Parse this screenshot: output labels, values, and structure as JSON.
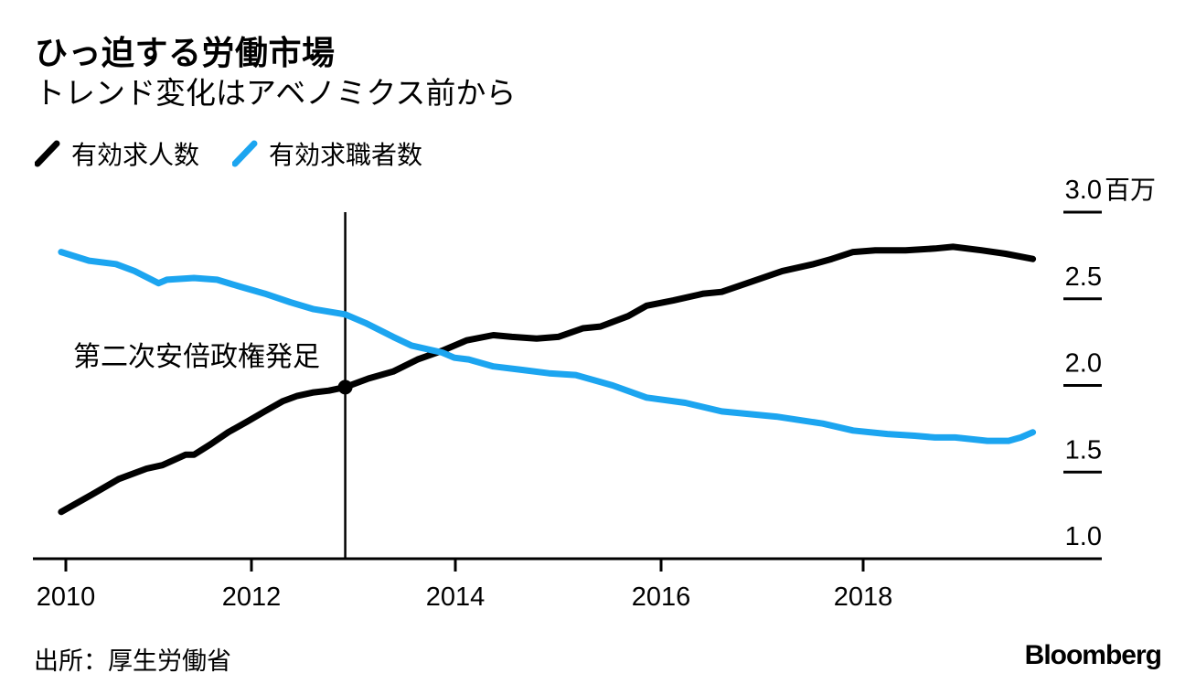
{
  "header": {
    "title": "ひっ迫する労働市場",
    "subtitle": "トレンド変化はアベノミクス前から"
  },
  "legend": [
    {
      "label": "有効求人数",
      "color": "#000000"
    },
    {
      "label": "有効求職者数",
      "color": "#1ca5f0"
    }
  ],
  "annotation": {
    "label": "第二次安倍政権発足"
  },
  "footer": {
    "source": "出所：厚生労働省",
    "brand": "Bloomberg"
  },
  "chart_data": {
    "type": "line",
    "title": "ひっ迫する労働市場",
    "subtitle": "トレンド変化はアベノミクス前から",
    "unit_label": "百万",
    "x_ticks": [
      2010,
      2012,
      2014,
      2016,
      2018
    ],
    "y_ticks": [
      1.0,
      1.5,
      2.0,
      2.5,
      3.0
    ],
    "xlim": [
      2009.95,
      2019.75
    ],
    "ylim": [
      1.0,
      3.0
    ],
    "grid": false,
    "legend_position": "top-left",
    "event_line": {
      "label": "第二次安倍政権発足",
      "x": 2012.92,
      "marker_series": "有効求人数",
      "marker_value": 1.99
    },
    "series": [
      {
        "name": "有効求人数",
        "color": "#000000",
        "points": [
          [
            2009.95,
            1.27
          ],
          [
            2010.28,
            1.37
          ],
          [
            2010.57,
            1.46
          ],
          [
            2010.87,
            1.52
          ],
          [
            2011.04,
            1.54
          ],
          [
            2011.29,
            1.6
          ],
          [
            2011.38,
            1.6
          ],
          [
            2011.56,
            1.66
          ],
          [
            2011.75,
            1.73
          ],
          [
            2011.95,
            1.79
          ],
          [
            2012.13,
            1.85
          ],
          [
            2012.31,
            1.91
          ],
          [
            2012.45,
            1.94
          ],
          [
            2012.61,
            1.96
          ],
          [
            2012.76,
            1.97
          ],
          [
            2012.92,
            1.99
          ],
          [
            2013.15,
            2.04
          ],
          [
            2013.39,
            2.08
          ],
          [
            2013.63,
            2.15
          ],
          [
            2013.87,
            2.2
          ],
          [
            2014.11,
            2.26
          ],
          [
            2014.37,
            2.29
          ],
          [
            2014.55,
            2.28
          ],
          [
            2014.79,
            2.27
          ],
          [
            2015.0,
            2.28
          ],
          [
            2015.24,
            2.33
          ],
          [
            2015.41,
            2.34
          ],
          [
            2015.68,
            2.4
          ],
          [
            2015.86,
            2.46
          ],
          [
            2016.12,
            2.49
          ],
          [
            2016.42,
            2.53
          ],
          [
            2016.6,
            2.54
          ],
          [
            2016.9,
            2.6
          ],
          [
            2017.2,
            2.66
          ],
          [
            2017.51,
            2.7
          ],
          [
            2017.69,
            2.73
          ],
          [
            2017.9,
            2.77
          ],
          [
            2018.12,
            2.78
          ],
          [
            2018.42,
            2.78
          ],
          [
            2018.71,
            2.79
          ],
          [
            2018.89,
            2.8
          ],
          [
            2019.17,
            2.78
          ],
          [
            2019.41,
            2.76
          ],
          [
            2019.68,
            2.73
          ]
        ]
      },
      {
        "name": "有効求職者数",
        "color": "#1ca5f0",
        "points": [
          [
            2009.95,
            2.77
          ],
          [
            2010.25,
            2.72
          ],
          [
            2010.54,
            2.7
          ],
          [
            2010.74,
            2.66
          ],
          [
            2011.0,
            2.59
          ],
          [
            2011.09,
            2.61
          ],
          [
            2011.38,
            2.62
          ],
          [
            2011.63,
            2.61
          ],
          [
            2011.88,
            2.57
          ],
          [
            2012.13,
            2.53
          ],
          [
            2012.38,
            2.48
          ],
          [
            2012.61,
            2.44
          ],
          [
            2012.92,
            2.41
          ],
          [
            2013.12,
            2.36
          ],
          [
            2013.39,
            2.28
          ],
          [
            2013.57,
            2.23
          ],
          [
            2013.87,
            2.19
          ],
          [
            2013.99,
            2.16
          ],
          [
            2014.13,
            2.15
          ],
          [
            2014.37,
            2.11
          ],
          [
            2014.64,
            2.09
          ],
          [
            2014.91,
            2.07
          ],
          [
            2015.17,
            2.06
          ],
          [
            2015.53,
            2.0
          ],
          [
            2015.86,
            1.93
          ],
          [
            2016.24,
            1.9
          ],
          [
            2016.6,
            1.85
          ],
          [
            2017.14,
            1.82
          ],
          [
            2017.6,
            1.78
          ],
          [
            2017.9,
            1.74
          ],
          [
            2018.24,
            1.72
          ],
          [
            2018.51,
            1.71
          ],
          [
            2018.71,
            1.7
          ],
          [
            2018.91,
            1.7
          ],
          [
            2019.23,
            1.68
          ],
          [
            2019.44,
            1.68
          ],
          [
            2019.56,
            1.7
          ],
          [
            2019.68,
            1.73
          ]
        ]
      }
    ]
  }
}
